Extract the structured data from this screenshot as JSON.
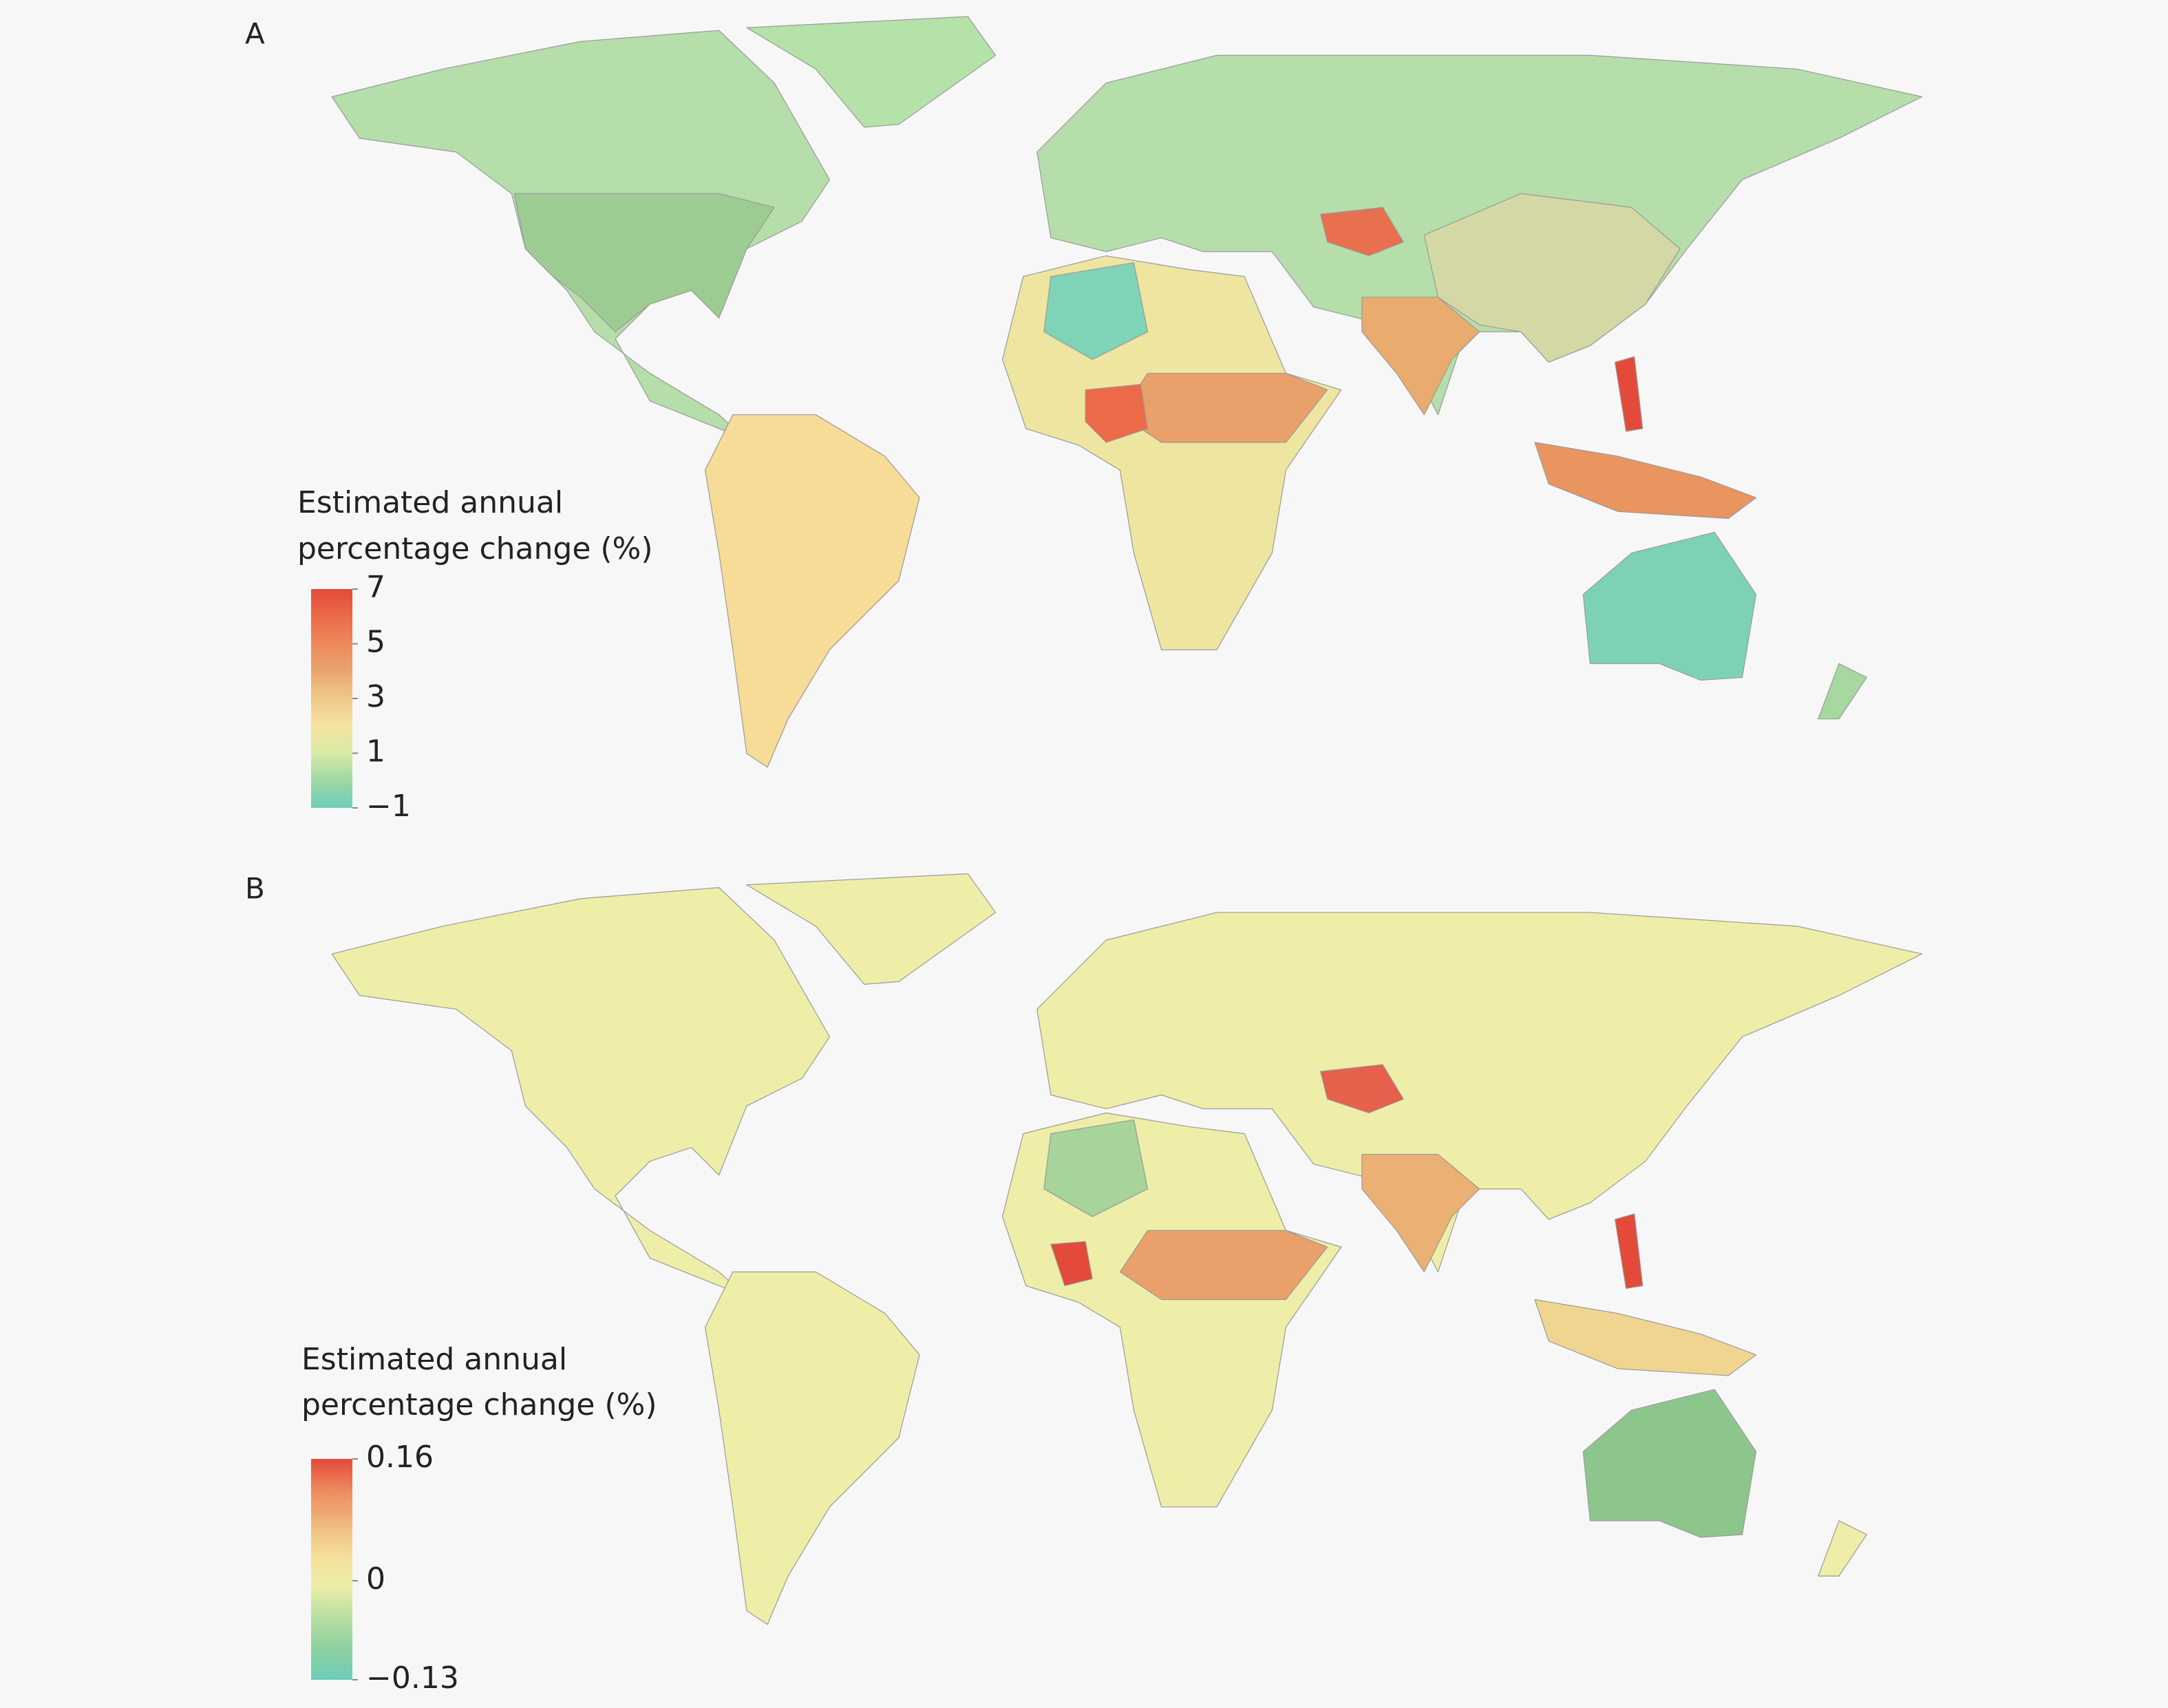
{
  "panels": [
    {
      "label": "A",
      "legend": {
        "title": [
          "Estimated annual",
          "percentage change (%)"
        ],
        "range": [
          -1,
          7
        ],
        "ticks": [
          7,
          5,
          3,
          1,
          {
            "value": -1,
            "label": "−1"
          }
        ],
        "colors": [
          "#6dcdb8",
          "#9fd7a4",
          "#d7eaa6",
          "#f7e3a0",
          "#f0c98a",
          "#e8a46e",
          "#f0895c",
          "#ec6a48",
          "#e34a3a"
        ]
      }
    },
    {
      "label": "B",
      "legend": {
        "title": [
          "Estimated annual",
          "percentage change (%)"
        ],
        "range": [
          -0.13,
          0.16
        ],
        "ticks": [
          0.16,
          0,
          {
            "value": -0.13,
            "label": "−0.13"
          }
        ],
        "colors": [
          "#6dcdb8",
          "#8fd0a0",
          "#b9dfa2",
          "#eeeea8",
          "#f4dd98",
          "#f0b57c",
          "#ec8a5c",
          "#e34a3a"
        ]
      }
    }
  ]
}
